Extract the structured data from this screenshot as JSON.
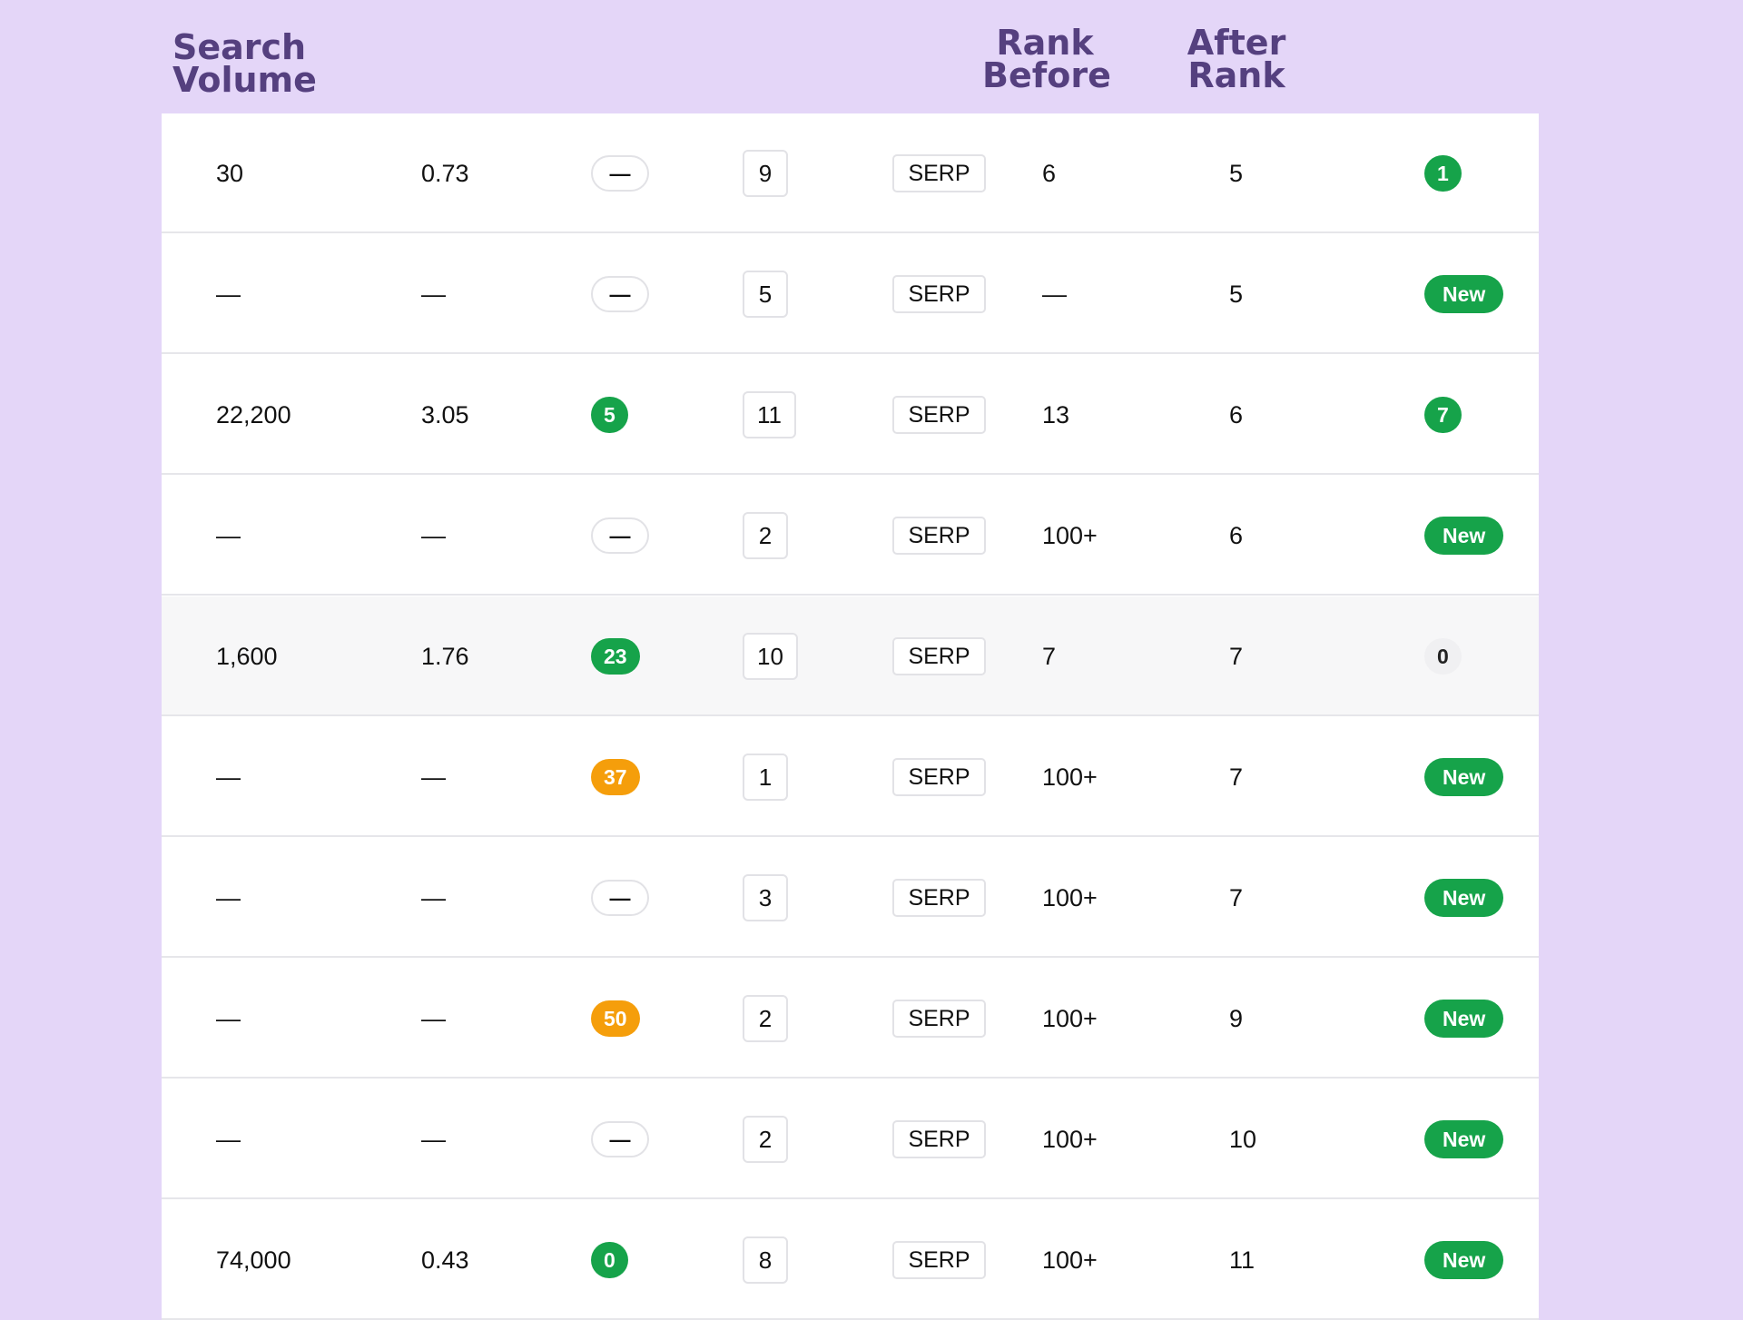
{
  "headers": {
    "search_volume": [
      "Search",
      "Volume"
    ],
    "rank_before": [
      "Rank",
      "Before"
    ],
    "after_rank": [
      "After",
      "Rank"
    ]
  },
  "colors": {
    "background": "#e4d6f8",
    "header_text": "#55407f",
    "green": "#16a34a",
    "orange": "#f59e0b"
  },
  "rows": [
    {
      "volume": "30",
      "cpc": "0.73",
      "difficulty": "—",
      "difficulty_style": "outline",
      "position": "9",
      "serp": "SERP",
      "rank_before": "6",
      "after_rank": "5",
      "change": "1",
      "change_style": "green"
    },
    {
      "volume": "—",
      "cpc": "—",
      "difficulty": "—",
      "difficulty_style": "outline",
      "position": "5",
      "serp": "SERP",
      "rank_before": "—",
      "after_rank": "5",
      "change": "New",
      "change_style": "new"
    },
    {
      "volume": "22,200",
      "cpc": "3.05",
      "difficulty": "5",
      "difficulty_style": "green",
      "position": "11",
      "serp": "SERP",
      "rank_before": "13",
      "after_rank": "6",
      "change": "7",
      "change_style": "green"
    },
    {
      "volume": "—",
      "cpc": "—",
      "difficulty": "—",
      "difficulty_style": "outline",
      "position": "2",
      "serp": "SERP",
      "rank_before": "100+",
      "after_rank": "6",
      "change": "New",
      "change_style": "new"
    },
    {
      "volume": "1,600",
      "cpc": "1.76",
      "difficulty": "23",
      "difficulty_style": "green",
      "position": "10",
      "serp": "SERP",
      "rank_before": "7",
      "after_rank": "7",
      "change": "0",
      "change_style": "grey",
      "highlight": true
    },
    {
      "volume": "—",
      "cpc": "—",
      "difficulty": "37",
      "difficulty_style": "orange",
      "position": "1",
      "serp": "SERP",
      "rank_before": "100+",
      "after_rank": "7",
      "change": "New",
      "change_style": "new"
    },
    {
      "volume": "—",
      "cpc": "—",
      "difficulty": "—",
      "difficulty_style": "outline",
      "position": "3",
      "serp": "SERP",
      "rank_before": "100+",
      "after_rank": "7",
      "change": "New",
      "change_style": "new"
    },
    {
      "volume": "—",
      "cpc": "—",
      "difficulty": "50",
      "difficulty_style": "orange",
      "position": "2",
      "serp": "SERP",
      "rank_before": "100+",
      "after_rank": "9",
      "change": "New",
      "change_style": "new"
    },
    {
      "volume": "—",
      "cpc": "—",
      "difficulty": "—",
      "difficulty_style": "outline",
      "position": "2",
      "serp": "SERP",
      "rank_before": "100+",
      "after_rank": "10",
      "change": "New",
      "change_style": "new"
    },
    {
      "volume": "74,000",
      "cpc": "0.43",
      "difficulty": "0",
      "difficulty_style": "green",
      "position": "8",
      "serp": "SERP",
      "rank_before": "100+",
      "after_rank": "11",
      "change": "New",
      "change_style": "new"
    }
  ]
}
